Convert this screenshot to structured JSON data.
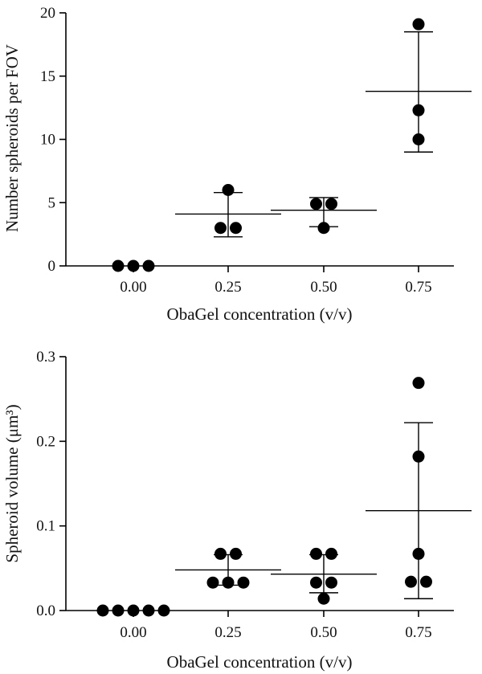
{
  "chart_data": [
    {
      "type": "scatter",
      "xlabel": "ObaGel concentration (v/v)",
      "ylabel": "Number spheroids per FOV",
      "ylim": [
        0,
        20
      ],
      "y_ticks": [
        "0",
        "5",
        "10",
        "15",
        "20"
      ],
      "categories": [
        "0.00",
        "0.25",
        "0.50",
        "0.75"
      ],
      "groups": [
        {
          "category": "0.00",
          "points": [
            0,
            0,
            0
          ],
          "mean": 0,
          "sd_low": 0,
          "sd_high": 0
        },
        {
          "category": "0.25",
          "points": [
            3,
            3,
            6
          ],
          "mean": 4.1,
          "sd_low": 2.3,
          "sd_high": 5.8
        },
        {
          "category": "0.50",
          "points": [
            3,
            4.9,
            4.9
          ],
          "mean": 4.4,
          "sd_low": 3.1,
          "sd_high": 5.4
        },
        {
          "category": "0.75",
          "points": [
            10,
            12.3,
            19.1
          ],
          "mean": 13.8,
          "sd_low": 9.0,
          "sd_high": 18.5
        }
      ]
    },
    {
      "type": "scatter",
      "xlabel": "ObaGel concentration (v/v)",
      "ylabel": "Spheroid volume (μm³)",
      "ylim": [
        0,
        0.3
      ],
      "y_ticks": [
        "0.0",
        "0.1",
        "0.2",
        "0.3"
      ],
      "categories": [
        "0.00",
        "0.25",
        "0.50",
        "0.75"
      ],
      "groups": [
        {
          "category": "0.00",
          "points": [
            0,
            0,
            0,
            0,
            0
          ],
          "mean": 0,
          "sd_low": 0,
          "sd_high": 0
        },
        {
          "category": "0.25",
          "points": [
            0.033,
            0.033,
            0.033,
            0.067,
            0.067
          ],
          "mean": 0.048,
          "sd_low": 0.03,
          "sd_high": 0.066
        },
        {
          "category": "0.50",
          "points": [
            0.014,
            0.033,
            0.033,
            0.067,
            0.067
          ],
          "mean": 0.043,
          "sd_low": 0.021,
          "sd_high": 0.066
        },
        {
          "category": "0.75",
          "points": [
            0.034,
            0.034,
            0.067,
            0.182,
            0.269
          ],
          "mean": 0.118,
          "sd_low": 0.014,
          "sd_high": 0.222
        }
      ]
    }
  ]
}
